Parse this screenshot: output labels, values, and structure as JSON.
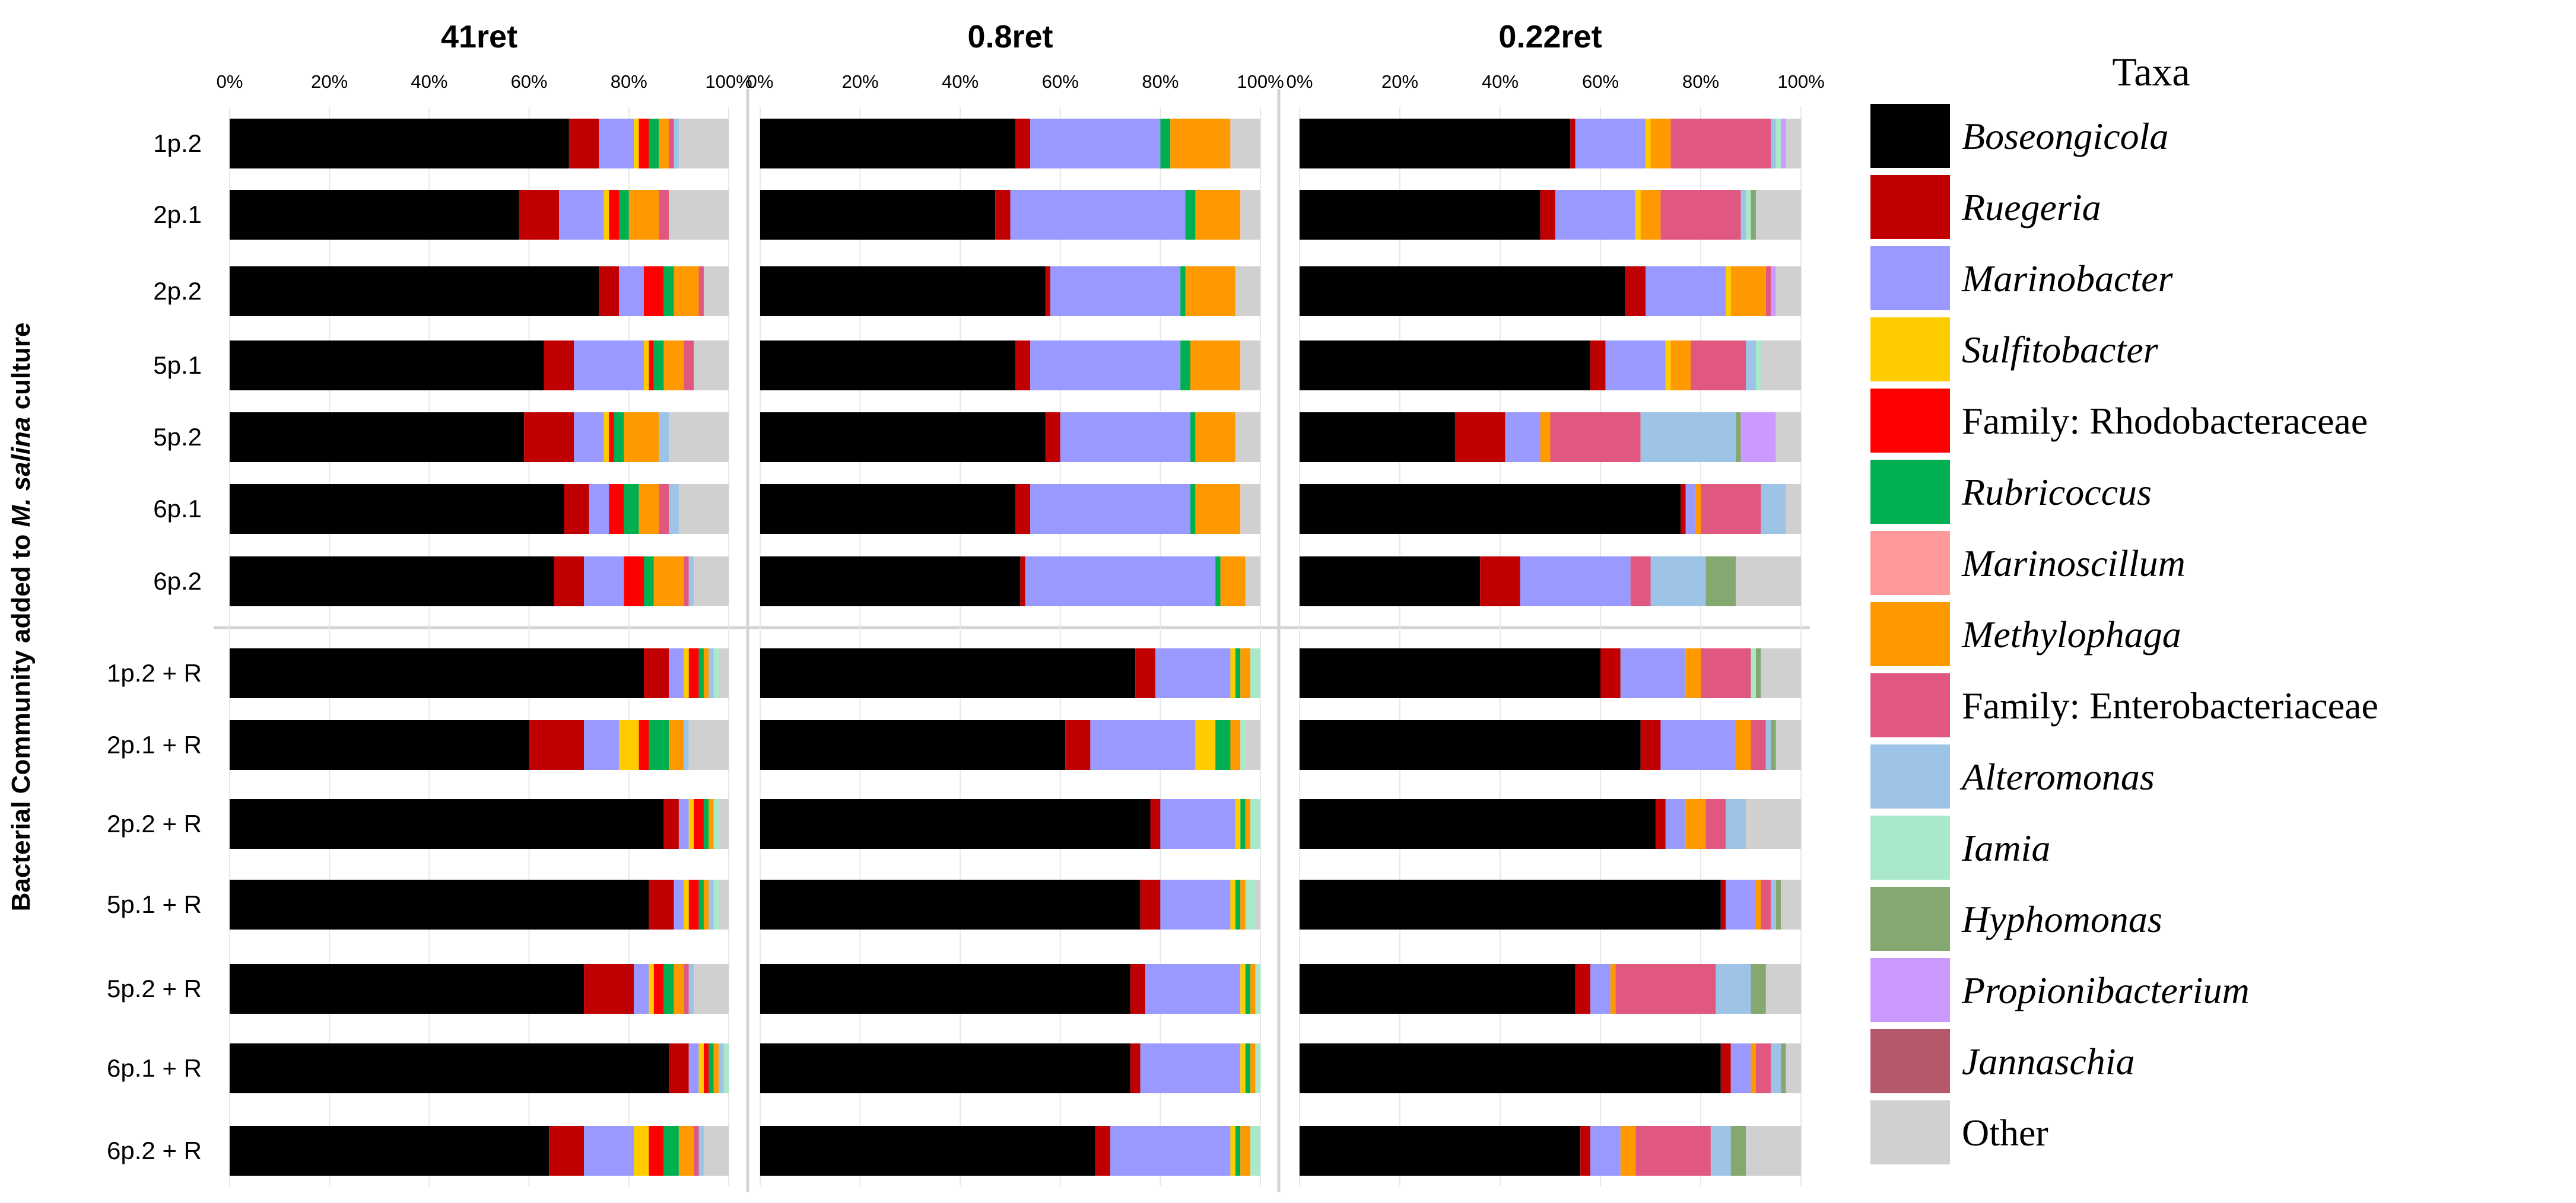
{
  "chart_data": {
    "type": "bar",
    "orientation": "horizontal-stacked-100",
    "y_axis_title_parts": [
      "Bacterial Community added to ",
      "M. salina",
      " culture"
    ],
    "x_tick_labels": [
      "0%",
      "20%",
      "40%",
      "60%",
      "80%",
      "100%"
    ],
    "xlim": [
      0,
      100
    ],
    "categories": [
      "1p.2",
      "2p.1",
      "2p.2",
      "5p.1",
      "5p.2",
      "6p.1",
      "6p.2",
      "1p.2 + R",
      "2p.1 + R",
      "2p.2 + R",
      "5p.1 + R",
      "5p.2 + R",
      "6p.1 + R",
      "6p.2 + R"
    ],
    "taxa": [
      {
        "name": "Boseongicola",
        "italic": true,
        "color": "#000000"
      },
      {
        "name": "Ruegeria",
        "italic": true,
        "color": "#C00000"
      },
      {
        "name": "Marinobacter",
        "italic": true,
        "color": "#9999FF"
      },
      {
        "name": "Sulfitobacter",
        "italic": true,
        "color": "#FFCC00"
      },
      {
        "name": "Family: Rhodobacteraceae",
        "italic": false,
        "color": "#FF0000"
      },
      {
        "name": "Rubricoccus",
        "italic": true,
        "color": "#00B050"
      },
      {
        "name": "Marinoscillum",
        "italic": true,
        "color": "#FF9999"
      },
      {
        "name": "Methylophaga",
        "italic": true,
        "color": "#FF9900"
      },
      {
        "name": "Family: Enterobacteriaceae",
        "italic": false,
        "color": "#E05780"
      },
      {
        "name": "Alteromonas",
        "italic": true,
        "color": "#9DC3E6"
      },
      {
        "name": "Iamia",
        "italic": true,
        "color": "#A9E8C8"
      },
      {
        "name": "Hyphomonas",
        "italic": true,
        "color": "#84A870"
      },
      {
        "name": "Propionibacterium",
        "italic": true,
        "color": "#CC99FF"
      },
      {
        "name": "Jannaschia",
        "italic": true,
        "color": "#B5596A"
      },
      {
        "name": "Other",
        "italic": false,
        "color": "#D0D0D0"
      }
    ],
    "legend": {
      "title": "Taxa",
      "position": "right"
    },
    "panels": [
      {
        "title": "41ret",
        "rows": [
          [
            68,
            6,
            7,
            1,
            2,
            2,
            0,
            2,
            1,
            1,
            0,
            0,
            0,
            0,
            10
          ],
          [
            58,
            8,
            9,
            1,
            2,
            2,
            0,
            6,
            2,
            0,
            0,
            0,
            0,
            0,
            12
          ],
          [
            74,
            4,
            5,
            0,
            4,
            2,
            0,
            5,
            1,
            0,
            0,
            0,
            0,
            0,
            5
          ],
          [
            63,
            6,
            14,
            1,
            1,
            2,
            0,
            4,
            2,
            0,
            0,
            0,
            0,
            0,
            7
          ],
          [
            59,
            10,
            6,
            1,
            1,
            2,
            0,
            7,
            0,
            2,
            0,
            0,
            0,
            0,
            12
          ],
          [
            67,
            5,
            4,
            0,
            3,
            3,
            0,
            4,
            2,
            2,
            0,
            0,
            0,
            0,
            10
          ],
          [
            65,
            6,
            8,
            0,
            4,
            2,
            0,
            6,
            1,
            1,
            0,
            0,
            0,
            0,
            7
          ],
          [
            83,
            5,
            3,
            1,
            2,
            1,
            0,
            1,
            0,
            1,
            1,
            0,
            0,
            0,
            2
          ],
          [
            60,
            11,
            7,
            4,
            2,
            4,
            0,
            3,
            0,
            1,
            0,
            0,
            0,
            0,
            8
          ],
          [
            87,
            3,
            2,
            1,
            2,
            1,
            0,
            1,
            0,
            0,
            1,
            0,
            0,
            0,
            2
          ],
          [
            84,
            5,
            2,
            1,
            2,
            1,
            0,
            1,
            0,
            1,
            1,
            0,
            0,
            0,
            2
          ],
          [
            71,
            10,
            3,
            1,
            2,
            2,
            0,
            2,
            1,
            1,
            0,
            0,
            0,
            0,
            7
          ],
          [
            88,
            4,
            2,
            1,
            1,
            1,
            0,
            1,
            0,
            1,
            1,
            0,
            0,
            0,
            0
          ],
          [
            64,
            7,
            10,
            3,
            3,
            3,
            0,
            3,
            1,
            1,
            0,
            0,
            0,
            0,
            5
          ]
        ]
      },
      {
        "title": "0.8ret",
        "rows": [
          [
            51,
            3,
            26,
            0,
            0,
            2,
            0,
            12,
            0,
            0,
            0,
            0,
            0,
            0,
            6
          ],
          [
            47,
            3,
            35,
            0,
            0,
            2,
            0,
            9,
            0,
            0,
            0,
            0,
            0,
            0,
            4
          ],
          [
            57,
            1,
            26,
            0,
            0,
            1,
            0,
            10,
            0,
            0,
            0,
            0,
            0,
            0,
            5
          ],
          [
            51,
            3,
            30,
            0,
            0,
            2,
            0,
            10,
            0,
            0,
            0,
            0,
            0,
            0,
            4
          ],
          [
            57,
            3,
            26,
            0,
            0,
            1,
            0,
            8,
            0,
            0,
            0,
            0,
            0,
            0,
            5
          ],
          [
            51,
            3,
            32,
            0,
            0,
            1,
            0,
            9,
            0,
            0,
            0,
            0,
            0,
            0,
            4
          ],
          [
            52,
            1,
            38,
            0,
            0,
            1,
            0,
            5,
            0,
            0,
            0,
            0,
            0,
            0,
            3
          ],
          [
            75,
            4,
            15,
            1,
            0,
            1,
            0,
            2,
            0,
            0,
            2,
            0,
            0,
            0,
            0
          ],
          [
            61,
            5,
            21,
            4,
            0,
            3,
            0,
            2,
            0,
            0,
            1,
            0,
            0,
            0,
            3
          ],
          [
            78,
            2,
            15,
            1,
            0,
            1,
            0,
            1,
            0,
            0,
            2,
            0,
            0,
            0,
            0
          ],
          [
            76,
            4,
            14,
            1,
            0,
            1,
            0,
            1,
            0,
            0,
            2,
            0,
            0,
            0,
            1
          ],
          [
            74,
            3,
            19,
            1,
            0,
            1,
            0,
            1,
            0,
            0,
            1,
            0,
            0,
            0,
            0
          ],
          [
            74,
            2,
            20,
            1,
            0,
            1,
            0,
            1,
            0,
            0,
            1,
            0,
            0,
            0,
            0
          ],
          [
            67,
            3,
            24,
            1,
            0,
            1,
            0,
            2,
            0,
            0,
            2,
            0,
            0,
            0,
            0
          ]
        ]
      },
      {
        "title": "0.22ret",
        "rows": [
          [
            54,
            1,
            14,
            1,
            0,
            0,
            0,
            4,
            20,
            1,
            1,
            0,
            1,
            0,
            3
          ],
          [
            48,
            3,
            16,
            1,
            0,
            0,
            0,
            4,
            16,
            1,
            1,
            1,
            0,
            0,
            9
          ],
          [
            65,
            4,
            16,
            1,
            0,
            0,
            0,
            7,
            1,
            0,
            0,
            0,
            1,
            0,
            5
          ],
          [
            58,
            3,
            12,
            1,
            0,
            0,
            0,
            4,
            11,
            2,
            1,
            0,
            0,
            0,
            8
          ],
          [
            31,
            10,
            7,
            0,
            0,
            0,
            0,
            2,
            18,
            19,
            0,
            1,
            7,
            0,
            5
          ],
          [
            76,
            1,
            2,
            0,
            0,
            0,
            0,
            1,
            12,
            5,
            0,
            0,
            0,
            0,
            3
          ],
          [
            36,
            8,
            22,
            0,
            0,
            0,
            0,
            0,
            4,
            11,
            0,
            6,
            0,
            0,
            13
          ],
          [
            60,
            4,
            13,
            0,
            0,
            0,
            0,
            3,
            10,
            0,
            1,
            1,
            0,
            0,
            8
          ],
          [
            68,
            4,
            15,
            0,
            0,
            0,
            0,
            3,
            3,
            1,
            0,
            1,
            0,
            0,
            5
          ],
          [
            71,
            2,
            4,
            0,
            0,
            0,
            0,
            4,
            4,
            4,
            0,
            0,
            0,
            0,
            11
          ],
          [
            84,
            1,
            6,
            0,
            0,
            0,
            0,
            1,
            2,
            1,
            0,
            1,
            0,
            0,
            4
          ],
          [
            55,
            3,
            4,
            0,
            0,
            0,
            0,
            1,
            20,
            7,
            0,
            3,
            0,
            0,
            7
          ],
          [
            84,
            2,
            4,
            0,
            0,
            0,
            0,
            1,
            3,
            2,
            0,
            1,
            0,
            0,
            3
          ],
          [
            56,
            2,
            6,
            0,
            0,
            0,
            0,
            3,
            15,
            4,
            0,
            3,
            0,
            0,
            11
          ]
        ]
      }
    ]
  }
}
